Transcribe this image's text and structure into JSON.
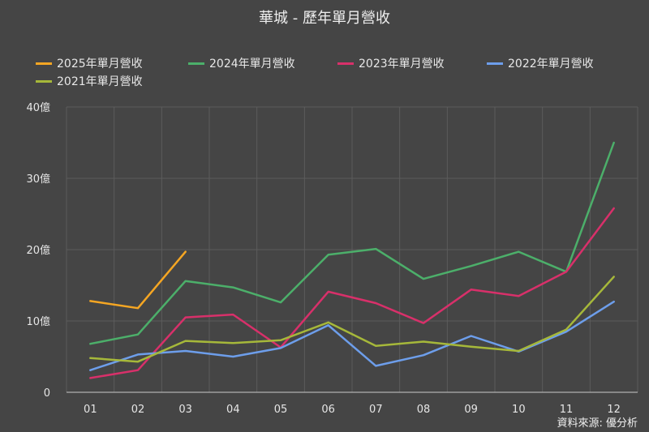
{
  "chart_data": {
    "type": "line",
    "title": "華城 - 歷年單月營收",
    "categories": [
      "01",
      "02",
      "03",
      "04",
      "05",
      "06",
      "07",
      "08",
      "09",
      "10",
      "11",
      "12"
    ],
    "y_ticks": [
      "0",
      "10億",
      "20億",
      "30億",
      "40億"
    ],
    "ylim": [
      0,
      40
    ],
    "unit": "億",
    "grid": true,
    "legend_position": "top",
    "series": [
      {
        "name": "2025年單月營收",
        "color": "#f5a623",
        "values": [
          12.8,
          11.8,
          19.7,
          null,
          null,
          null,
          null,
          null,
          null,
          null,
          null,
          null
        ]
      },
      {
        "name": "2024年單月營收",
        "color": "#4caf6a",
        "values": [
          6.8,
          8.1,
          15.6,
          14.7,
          12.6,
          19.3,
          20.1,
          15.9,
          17.7,
          19.7,
          16.9,
          35.0
        ]
      },
      {
        "name": "2023年單月營收",
        "color": "#d8306a",
        "values": [
          2.0,
          3.1,
          10.5,
          10.9,
          6.3,
          14.1,
          12.5,
          9.7,
          14.4,
          13.5,
          16.9,
          25.8
        ]
      },
      {
        "name": "2022年單月營收",
        "color": "#6d9eeb",
        "values": [
          3.1,
          5.3,
          5.8,
          5.0,
          6.2,
          9.4,
          3.7,
          5.2,
          7.9,
          5.7,
          8.5,
          12.7
        ]
      },
      {
        "name": "2021年單月營收",
        "color": "#a6b83a",
        "values": [
          4.8,
          4.3,
          7.2,
          6.9,
          7.3,
          9.8,
          6.5,
          7.1,
          6.4,
          5.8,
          8.8,
          16.2
        ]
      }
    ]
  },
  "source": "資料來源: 優分析"
}
